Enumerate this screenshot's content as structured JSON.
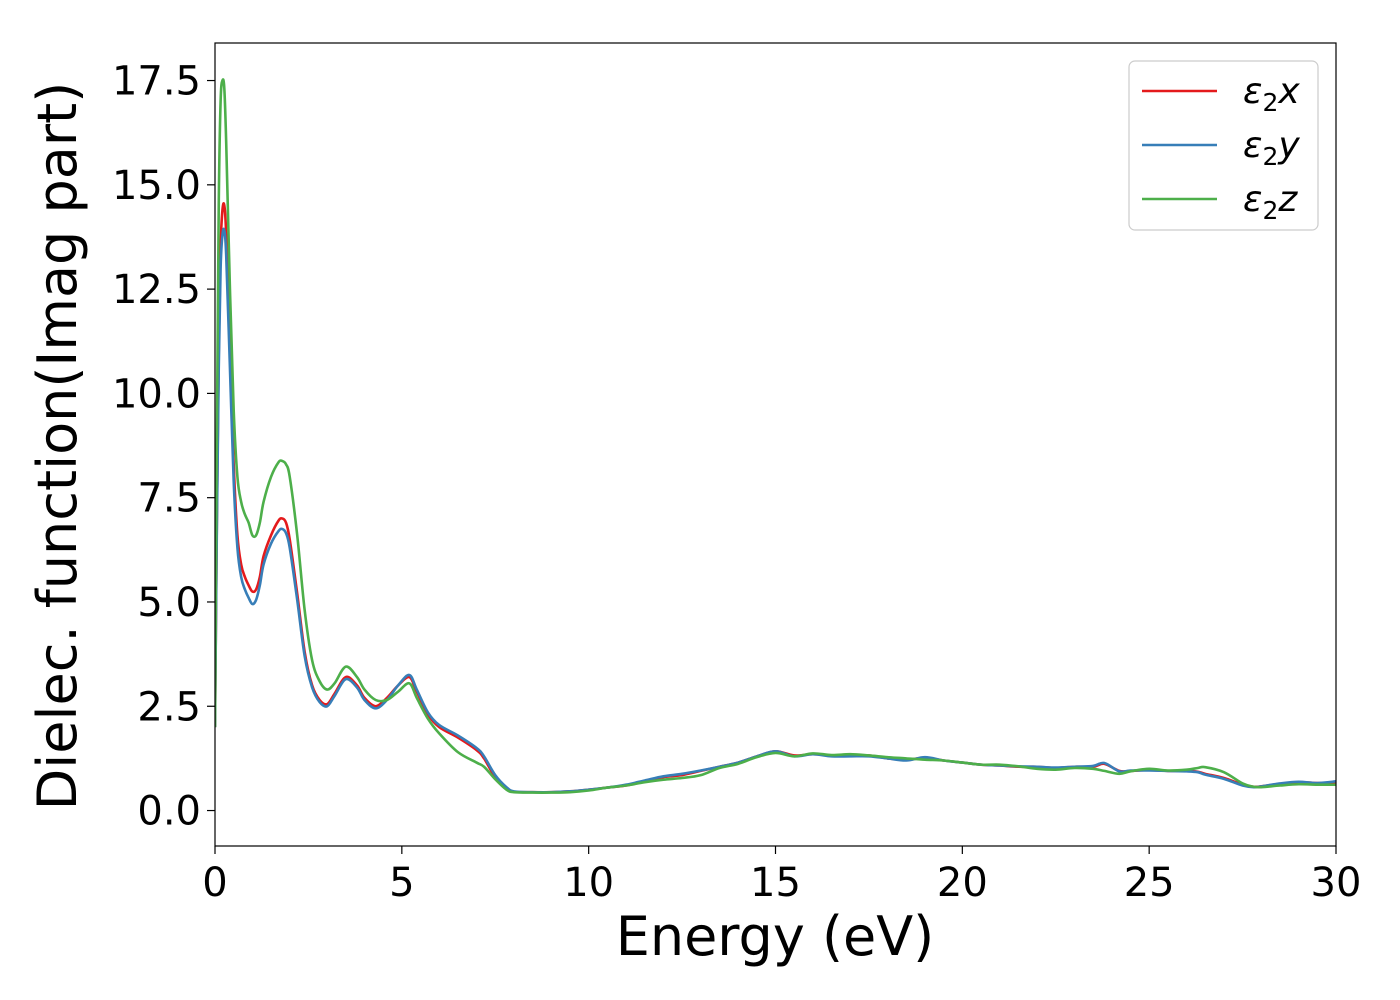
{
  "chart_data": {
    "type": "line",
    "title": "",
    "xlabel": "Energy (eV)",
    "ylabel": "Dielec. function(Imag part)",
    "xlim": [
      0,
      30
    ],
    "ylim": [
      -0.85,
      18.4
    ],
    "xticks": [
      0,
      5,
      10,
      15,
      20,
      25,
      30
    ],
    "xtick_labels": [
      "0",
      "5",
      "10",
      "15",
      "20",
      "25",
      "30"
    ],
    "yticks": [
      0.0,
      2.5,
      5.0,
      7.5,
      10.0,
      12.5,
      15.0,
      17.5
    ],
    "ytick_labels": [
      "0.0",
      "2.5",
      "5.0",
      "7.5",
      "10.0",
      "12.5",
      "15.0",
      "17.5"
    ],
    "grid": false,
    "legend": "top-right",
    "series": [
      {
        "name": "ε₂x",
        "legend_main": "ε",
        "legend_sub": "2",
        "legend_var": "x",
        "color": "#e41a1c",
        "x": [
          0,
          0.05,
          0.1,
          0.15,
          0.2,
          0.25,
          0.3,
          0.4,
          0.5,
          0.6,
          0.7,
          0.8,
          0.9,
          1.0,
          1.1,
          1.2,
          1.3,
          1.5,
          1.7,
          1.8,
          1.9,
          2.0,
          2.2,
          2.4,
          2.6,
          2.8,
          3.0,
          3.2,
          3.5,
          3.8,
          4.0,
          4.3,
          4.6,
          4.9,
          5.2,
          5.4,
          5.7,
          6.0,
          6.5,
          7.0,
          7.2,
          7.5,
          7.8,
          8.0,
          8.5,
          9.0,
          9.5,
          10.0,
          10.5,
          11.0,
          11.5,
          12.0,
          12.5,
          13.0,
          13.5,
          14.0,
          14.5,
          15.0,
          15.5,
          16.0,
          16.5,
          17.0,
          17.5,
          18.0,
          18.5,
          19.0,
          19.5,
          20.0,
          20.5,
          21.0,
          21.5,
          22.0,
          22.5,
          23.0,
          23.5,
          23.8,
          24.2,
          24.5,
          25.0,
          25.5,
          26.0,
          26.3,
          26.5,
          27.0,
          27.5,
          27.8,
          28.0,
          28.5,
          29.0,
          29.5,
          30.0
        ],
        "y": [
          2.0,
          7.0,
          11.0,
          13.5,
          14.4,
          14.5,
          13.8,
          11.0,
          8.3,
          6.6,
          5.9,
          5.6,
          5.4,
          5.25,
          5.3,
          5.6,
          6.1,
          6.6,
          6.95,
          7.0,
          6.9,
          6.5,
          5.2,
          3.8,
          3.0,
          2.65,
          2.55,
          2.8,
          3.2,
          3.0,
          2.7,
          2.5,
          2.7,
          3.0,
          3.2,
          2.85,
          2.3,
          2.0,
          1.75,
          1.45,
          1.25,
          0.8,
          0.55,
          0.45,
          0.44,
          0.44,
          0.46,
          0.5,
          0.55,
          0.6,
          0.7,
          0.8,
          0.85,
          0.95,
          1.05,
          1.15,
          1.3,
          1.42,
          1.32,
          1.35,
          1.32,
          1.32,
          1.32,
          1.25,
          1.22,
          1.26,
          1.2,
          1.15,
          1.1,
          1.08,
          1.05,
          1.05,
          1.02,
          1.05,
          1.05,
          1.12,
          0.95,
          0.95,
          0.97,
          0.95,
          0.95,
          0.93,
          0.88,
          0.78,
          0.62,
          0.57,
          0.58,
          0.64,
          0.68,
          0.66,
          0.68
        ]
      },
      {
        "name": "ε₂y",
        "legend_main": "ε",
        "legend_sub": "2",
        "legend_var": "y",
        "color": "#377eb8",
        "x": [
          0,
          0.05,
          0.1,
          0.15,
          0.2,
          0.25,
          0.3,
          0.4,
          0.5,
          0.6,
          0.7,
          0.8,
          0.9,
          1.0,
          1.1,
          1.2,
          1.3,
          1.5,
          1.7,
          1.8,
          1.9,
          2.0,
          2.2,
          2.4,
          2.6,
          2.8,
          3.0,
          3.2,
          3.5,
          3.8,
          4.0,
          4.3,
          4.6,
          4.9,
          5.2,
          5.4,
          5.7,
          6.0,
          6.5,
          7.0,
          7.2,
          7.5,
          7.8,
          8.0,
          8.5,
          9.0,
          9.5,
          10.0,
          10.5,
          11.0,
          11.5,
          12.0,
          12.5,
          13.0,
          13.5,
          14.0,
          14.5,
          15.0,
          15.5,
          16.0,
          16.5,
          17.0,
          17.5,
          18.0,
          18.5,
          19.0,
          19.5,
          20.0,
          20.5,
          21.0,
          21.5,
          22.0,
          22.5,
          23.0,
          23.5,
          23.8,
          24.2,
          24.5,
          25.0,
          25.5,
          26.0,
          26.3,
          26.5,
          27.0,
          27.5,
          27.8,
          28.0,
          28.5,
          29.0,
          29.5,
          30.0
        ],
        "y": [
          2.0,
          6.8,
          10.6,
          13.0,
          13.8,
          13.9,
          13.3,
          10.6,
          7.9,
          6.3,
          5.6,
          5.3,
          5.1,
          4.95,
          5.05,
          5.4,
          5.9,
          6.4,
          6.7,
          6.75,
          6.65,
          6.3,
          5.05,
          3.7,
          2.95,
          2.6,
          2.5,
          2.75,
          3.15,
          2.95,
          2.65,
          2.45,
          2.65,
          3.0,
          3.25,
          2.9,
          2.35,
          2.05,
          1.8,
          1.5,
          1.3,
          0.85,
          0.56,
          0.46,
          0.44,
          0.44,
          0.46,
          0.5,
          0.55,
          0.62,
          0.72,
          0.82,
          0.88,
          0.96,
          1.05,
          1.15,
          1.3,
          1.42,
          1.3,
          1.35,
          1.3,
          1.3,
          1.3,
          1.25,
          1.2,
          1.28,
          1.2,
          1.15,
          1.1,
          1.08,
          1.06,
          1.05,
          1.03,
          1.05,
          1.07,
          1.14,
          0.94,
          0.96,
          0.96,
          0.95,
          0.94,
          0.92,
          0.86,
          0.76,
          0.6,
          0.56,
          0.58,
          0.65,
          0.69,
          0.66,
          0.7
        ]
      },
      {
        "name": "ε₂z",
        "legend_main": "ε",
        "legend_sub": "2",
        "legend_var": "z",
        "color": "#4daf4a",
        "x": [
          0,
          0.05,
          0.1,
          0.15,
          0.2,
          0.25,
          0.3,
          0.4,
          0.5,
          0.6,
          0.7,
          0.8,
          0.9,
          1.0,
          1.1,
          1.2,
          1.3,
          1.5,
          1.7,
          1.8,
          1.9,
          2.0,
          2.2,
          2.4,
          2.6,
          2.8,
          3.0,
          3.2,
          3.5,
          3.8,
          4.0,
          4.3,
          4.6,
          4.9,
          5.2,
          5.4,
          5.7,
          6.0,
          6.5,
          7.0,
          7.2,
          7.5,
          7.8,
          8.0,
          8.5,
          9.0,
          9.5,
          10.0,
          10.5,
          11.0,
          11.5,
          12.0,
          12.5,
          13.0,
          13.5,
          14.0,
          14.5,
          15.0,
          15.5,
          16.0,
          16.5,
          17.0,
          17.5,
          18.0,
          18.5,
          19.0,
          19.5,
          20.0,
          20.5,
          21.0,
          21.5,
          22.0,
          22.5,
          23.0,
          23.5,
          23.8,
          24.2,
          24.5,
          25.0,
          25.5,
          26.0,
          26.3,
          26.5,
          27.0,
          27.5,
          27.8,
          28.0,
          28.5,
          29.0,
          29.5,
          30.0
        ],
        "y": [
          2.0,
          9.0,
          14.5,
          17.0,
          17.5,
          17.3,
          16.0,
          12.5,
          9.6,
          8.0,
          7.4,
          7.1,
          6.9,
          6.6,
          6.6,
          6.9,
          7.4,
          8.0,
          8.35,
          8.38,
          8.3,
          8.0,
          6.6,
          4.8,
          3.6,
          3.1,
          2.9,
          3.05,
          3.45,
          3.2,
          2.9,
          2.65,
          2.65,
          2.85,
          3.05,
          2.7,
          2.2,
          1.85,
          1.4,
          1.15,
          1.05,
          0.75,
          0.5,
          0.44,
          0.43,
          0.43,
          0.44,
          0.48,
          0.55,
          0.6,
          0.68,
          0.74,
          0.78,
          0.85,
          1.02,
          1.12,
          1.28,
          1.38,
          1.3,
          1.37,
          1.33,
          1.35,
          1.32,
          1.28,
          1.25,
          1.22,
          1.2,
          1.15,
          1.1,
          1.1,
          1.06,
          1.0,
          0.98,
          1.02,
          1.0,
          0.95,
          0.88,
          0.94,
          1.0,
          0.96,
          0.98,
          1.02,
          1.04,
          0.92,
          0.65,
          0.57,
          0.56,
          0.6,
          0.63,
          0.62,
          0.62
        ]
      }
    ]
  }
}
